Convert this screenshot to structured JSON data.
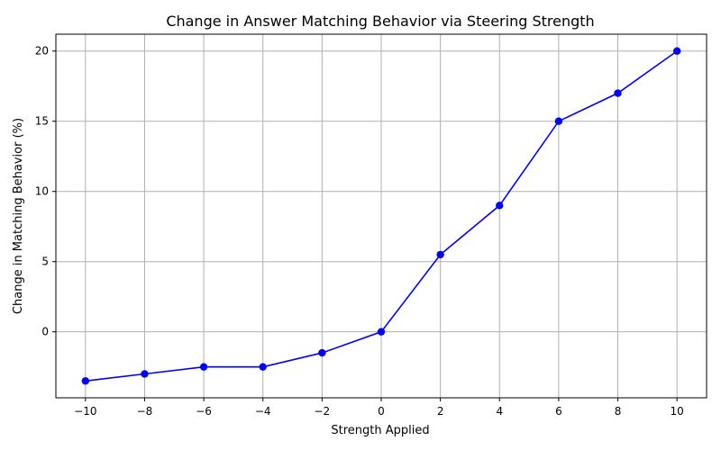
{
  "chart_data": {
    "type": "line",
    "title": "Change in Answer Matching Behavior via Steering Strength",
    "xlabel": "Strength Applied",
    "ylabel": "Change in Matching Behavior (%)",
    "x": [
      -10,
      -8,
      -6,
      -4,
      -2,
      0,
      2,
      4,
      6,
      8,
      10
    ],
    "series": [
      {
        "values": [
          -3.5,
          -3.0,
          -2.5,
          -2.5,
          -1.5,
          0,
          5.5,
          9,
          15,
          17,
          20
        ],
        "color": "#0000ff",
        "marker": "circle"
      }
    ],
    "xlim": [
      -11,
      11
    ],
    "ylim": [
      -4.7,
      21.2
    ],
    "xticks": [
      -10,
      -8,
      -6,
      -4,
      -2,
      0,
      2,
      4,
      6,
      8,
      10
    ],
    "xtick_labels": [
      "−10",
      "−8",
      "−6",
      "−4",
      "−2",
      "0",
      "2",
      "4",
      "6",
      "8",
      "10"
    ],
    "yticks": [
      0,
      5,
      10,
      15,
      20
    ],
    "ytick_labels": [
      "0",
      "5",
      "10",
      "15",
      "20"
    ],
    "grid": true,
    "legend": "none"
  }
}
